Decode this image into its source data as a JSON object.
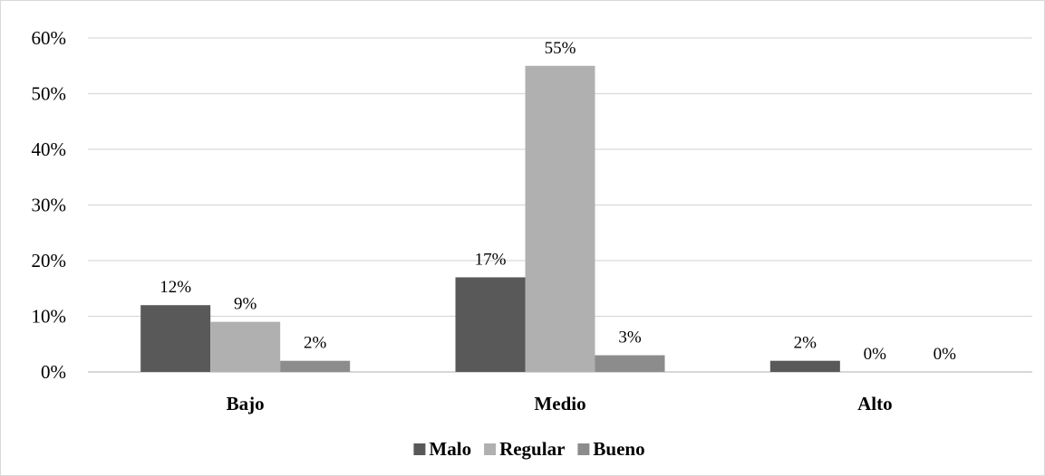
{
  "chart_data": {
    "type": "bar",
    "categories": [
      "Bajo",
      "Medio",
      "Alto"
    ],
    "series": [
      {
        "name": "Malo",
        "values": [
          12,
          17,
          2
        ],
        "labels": [
          "12%",
          "17%",
          "2%"
        ],
        "color": "#595959"
      },
      {
        "name": "Regular",
        "values": [
          9,
          55,
          0
        ],
        "labels": [
          "9%",
          "55%",
          "0%"
        ],
        "color": "#b0b0b0"
      },
      {
        "name": "Bueno",
        "values": [
          2,
          3,
          0
        ],
        "labels": [
          "2%",
          "3%",
          "0%"
        ],
        "color": "#8c8c8c"
      }
    ],
    "y_ticks": [
      "0%",
      "10%",
      "20%",
      "30%",
      "40%",
      "50%",
      "60%"
    ],
    "ylim": [
      0,
      60
    ],
    "grid": true,
    "legend_position": "bottom",
    "title": "",
    "xlabel": "",
    "ylabel": ""
  },
  "colors": {
    "gridline": "#d9d9d9",
    "axis": "#bfbfbf"
  }
}
